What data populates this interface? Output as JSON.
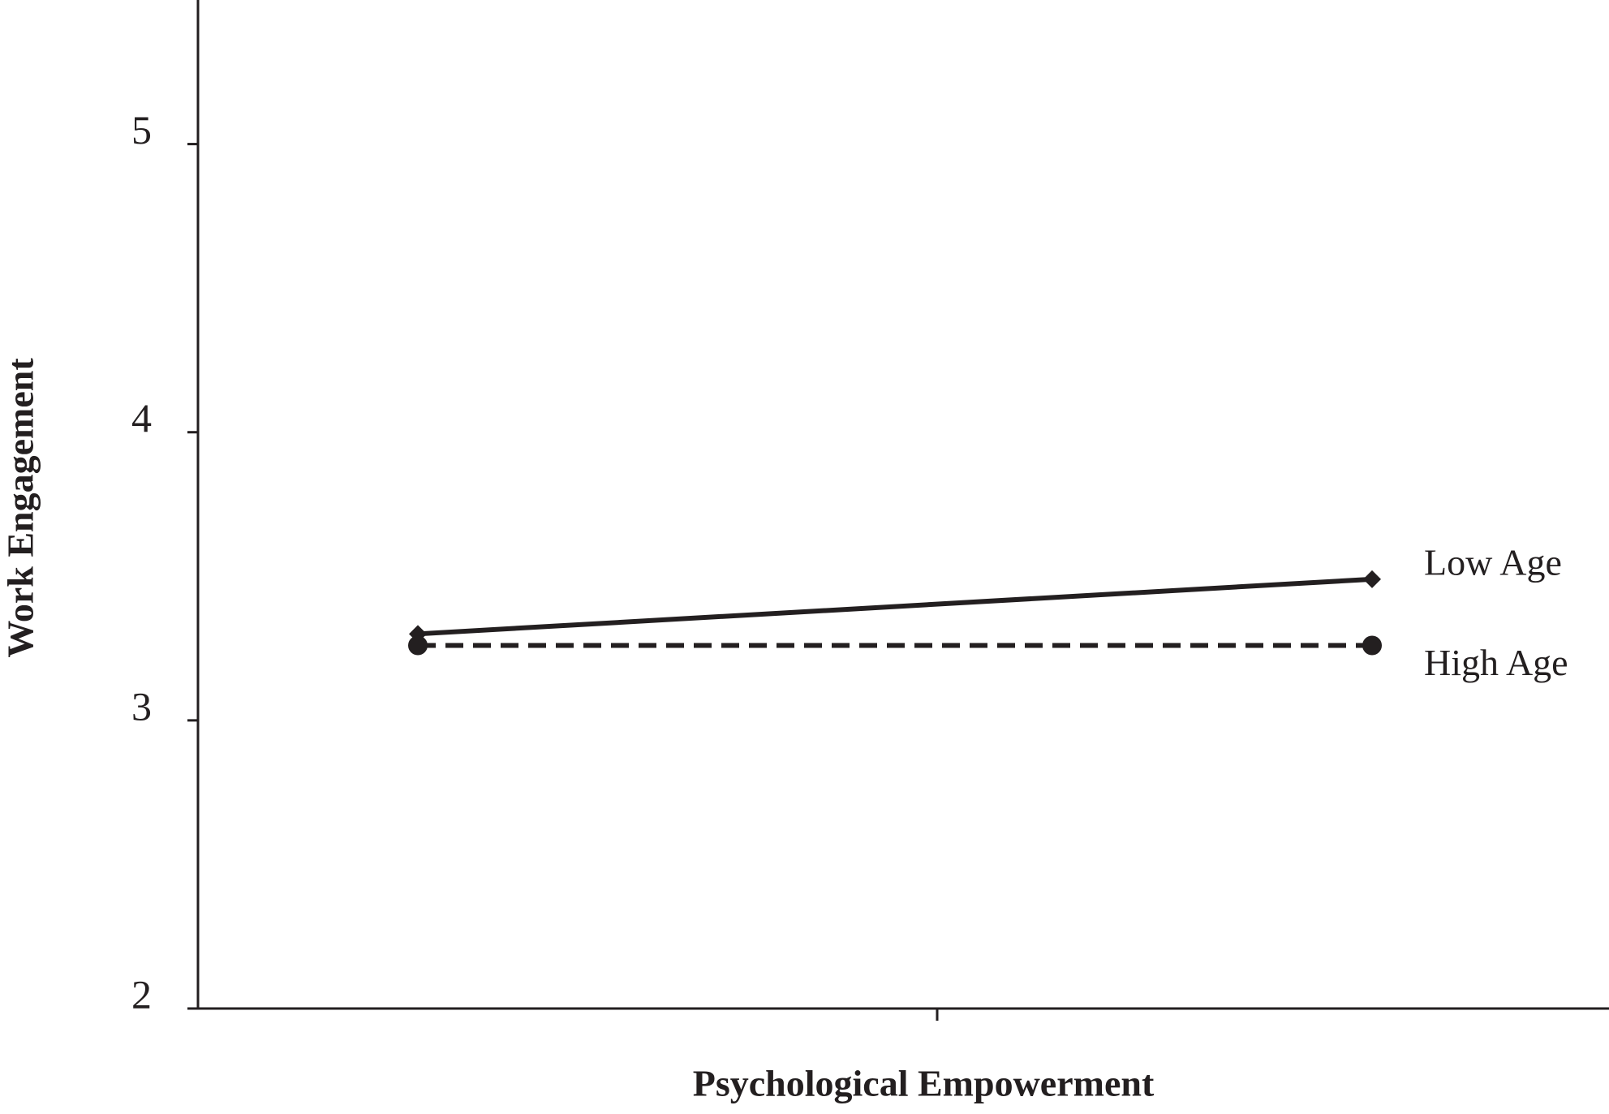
{
  "chart_data": {
    "type": "line",
    "x_label": "Psychological Empowerment",
    "y_label": "Work Engagement",
    "categories": [
      null,
      null
    ],
    "ylim": [
      2,
      5.5
    ],
    "yticks": [
      2,
      3,
      4,
      5
    ],
    "grid": false,
    "series": [
      {
        "name": "Low Age",
        "color": "#231f20",
        "marker": "diamond",
        "dashed": false,
        "values": [
          3.3,
          3.49
        ]
      },
      {
        "name": "High Age",
        "color": "#231f20",
        "marker": "circle",
        "dashed": true,
        "values": [
          3.26,
          3.26
        ]
      }
    ]
  }
}
